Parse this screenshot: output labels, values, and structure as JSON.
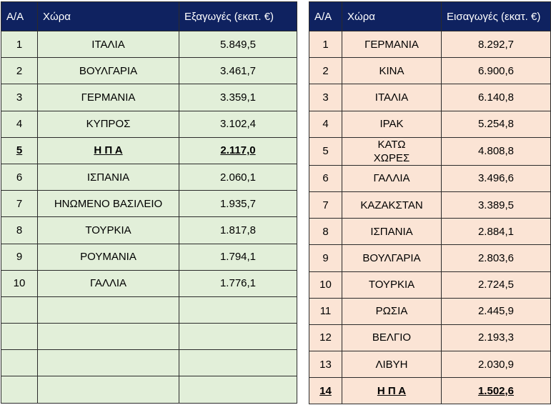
{
  "exports": {
    "headers": [
      "Α/Α",
      "Χώρα",
      "Εξαγωγές (εκατ. €)"
    ],
    "rows": [
      {
        "rank": "1",
        "country": "ΙΤΑΛΙΑ",
        "value": "5.849,5"
      },
      {
        "rank": "2",
        "country": "ΒΟΥΛΓΑΡΙΑ",
        "value": "3.461,7"
      },
      {
        "rank": "3",
        "country": "ΓΕΡΜΑΝΙΑ",
        "value": "3.359,1"
      },
      {
        "rank": "4",
        "country": "ΚΥΠΡΟΣ",
        "value": "3.102,4"
      },
      {
        "rank": "5",
        "country": "Η Π Α",
        "value": "2.117,0"
      },
      {
        "rank": "6",
        "country": "ΙΣΠΑΝΙΑ",
        "value": "2.060,1"
      },
      {
        "rank": "7",
        "country": "ΗΝΩΜΕΝΟ ΒΑΣΙΛΕΙΟ",
        "value": "1.935,7"
      },
      {
        "rank": "8",
        "country": "ΤΟΥΡΚΙΑ",
        "value": "1.817,8"
      },
      {
        "rank": "9",
        "country": "ΡΟΥΜΑΝΙΑ",
        "value": "1.794,1"
      },
      {
        "rank": "10",
        "country": "ΓΑΛΛΙΑ",
        "value": "1.776,1"
      }
    ]
  },
  "imports": {
    "headers": [
      "Α/Α",
      "Χώρα",
      "Εισαγωγές (εκατ. €)"
    ],
    "rows": [
      {
        "rank": "1",
        "country": "ΓΕΡΜΑΝΙΑ",
        "value": "8.292,7"
      },
      {
        "rank": "2",
        "country": "ΚΙΝΑ",
        "value": "6.900,6"
      },
      {
        "rank": "3",
        "country": "ΙΤΑΛΙΑ",
        "value": "6.140,8"
      },
      {
        "rank": "4",
        "country": "ΙΡΑΚ",
        "value": "5.254,8"
      },
      {
        "rank": "5",
        "country": "ΚΑΤΩ ΧΩΡΕΣ",
        "value": "4.808,8"
      },
      {
        "rank": "6",
        "country": "ΓΑΛΛΙΑ",
        "value": "3.496,6"
      },
      {
        "rank": "7",
        "country": "ΚΑΖΑΚΣΤΑΝ",
        "value": "3.389,5"
      },
      {
        "rank": "8",
        "country": "ΙΣΠΑΝΙΑ",
        "value": "2.884,1"
      },
      {
        "rank": "9",
        "country": "ΒΟΥΛΓΑΡΙΑ",
        "value": "2.803,6"
      },
      {
        "rank": "10",
        "country": "ΤΟΥΡΚΙΑ",
        "value": "2.724,5"
      },
      {
        "rank": "11",
        "country": "ΡΩΣΙΑ",
        "value": "2.445,9"
      },
      {
        "rank": "12",
        "country": "ΒΕΛΓΙΟ",
        "value": "2.193,3"
      },
      {
        "rank": "13",
        "country": "ΛΙΒΥΗ",
        "value": "2.030,9"
      },
      {
        "rank": "14",
        "country": "Η Π Α",
        "value": "1.502,6"
      }
    ]
  },
  "colors": {
    "header_bg": "#0f2260",
    "exports_row_bg": "#e2efd9",
    "imports_row_bg": "#fbe4d5"
  }
}
